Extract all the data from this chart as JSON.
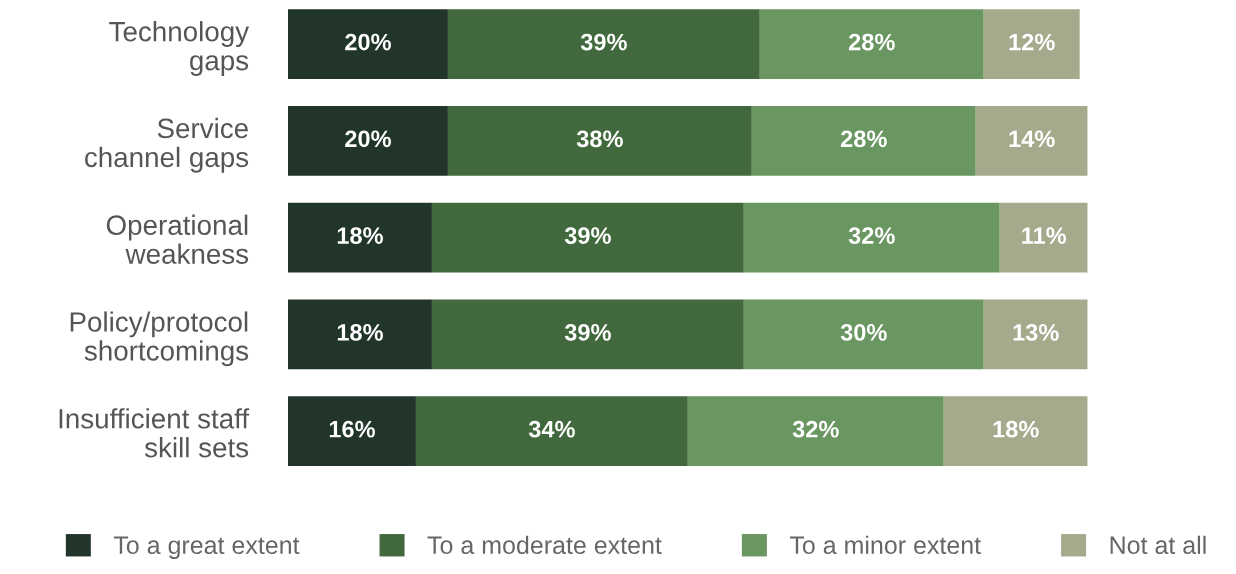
{
  "chart_data": {
    "type": "bar",
    "orientation": "horizontal",
    "stacked": true,
    "categories": [
      "Technology\ngaps",
      "Service\nchannel gaps",
      "Operational\nweakness",
      "Policy/protocol\nshortcomings",
      "Insufficient staff\nskill sets"
    ],
    "series": [
      {
        "name": "To a great extent",
        "color": "#22352a",
        "values": [
          20,
          20,
          18,
          18,
          16
        ],
        "value_labels": [
          "20%",
          "20%",
          "18%",
          "18%",
          "16%"
        ]
      },
      {
        "name": "To a moderate extent",
        "color": "#42693d",
        "values": [
          39,
          38,
          39,
          39,
          34
        ],
        "value_labels": [
          "39%",
          "38%",
          "39%",
          "39%",
          "34%"
        ]
      },
      {
        "name": "To a minor extent",
        "color": "#6a9661",
        "values": [
          28,
          28,
          32,
          30,
          32
        ],
        "value_labels": [
          "28%",
          "28%",
          "32%",
          "30%",
          "32%"
        ]
      },
      {
        "name": "Not at all",
        "color": "#a6aa8c",
        "values": [
          12,
          14,
          11,
          13,
          18
        ],
        "value_labels": [
          "12%",
          "14%",
          "11%",
          "13%",
          "18%"
        ]
      }
    ],
    "legend": "bottom",
    "tick_labels": "y",
    "grid": false
  }
}
